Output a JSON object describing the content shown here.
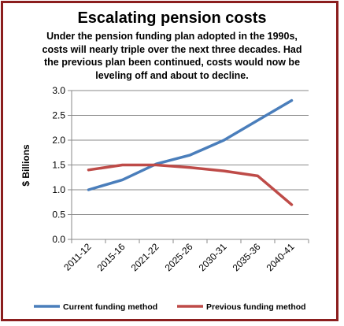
{
  "chart_data": {
    "type": "line",
    "title": "Escalating pension costs",
    "subtitle": "Under the pension funding plan adopted in the 1990s, costs will nearly triple over the next three decades. Had the previous plan been continued, costs would now be leveling off and about to decline.",
    "subtitle_lines": [
      "Under the pension funding plan adopted in the 1990s,",
      "costs will nearly triple over the next three decades. Had",
      "the previous plan been continued, costs would now be",
      "leveling off and about to decline."
    ],
    "xlabel": "",
    "ylabel": "$ Billions",
    "categories": [
      "2011-12",
      "2015-16",
      "2021-22",
      "2025-26",
      "2030-31",
      "2035-36",
      "2040-41"
    ],
    "ylim": [
      0,
      3.0
    ],
    "yticks": [
      "0.0",
      "0.5",
      "1.0",
      "1.5",
      "2.0",
      "2.5",
      "3.0"
    ],
    "grid": "horizontal",
    "legend": "bottom",
    "series": [
      {
        "name": "Current funding method",
        "color": "#4a7ebb",
        "values": [
          1.0,
          1.2,
          1.52,
          1.7,
          2.0,
          2.4,
          2.8
        ]
      },
      {
        "name": "Previous funding method",
        "color": "#be4b48",
        "values": [
          1.4,
          1.5,
          1.5,
          1.45,
          1.38,
          1.28,
          0.7
        ]
      }
    ]
  }
}
